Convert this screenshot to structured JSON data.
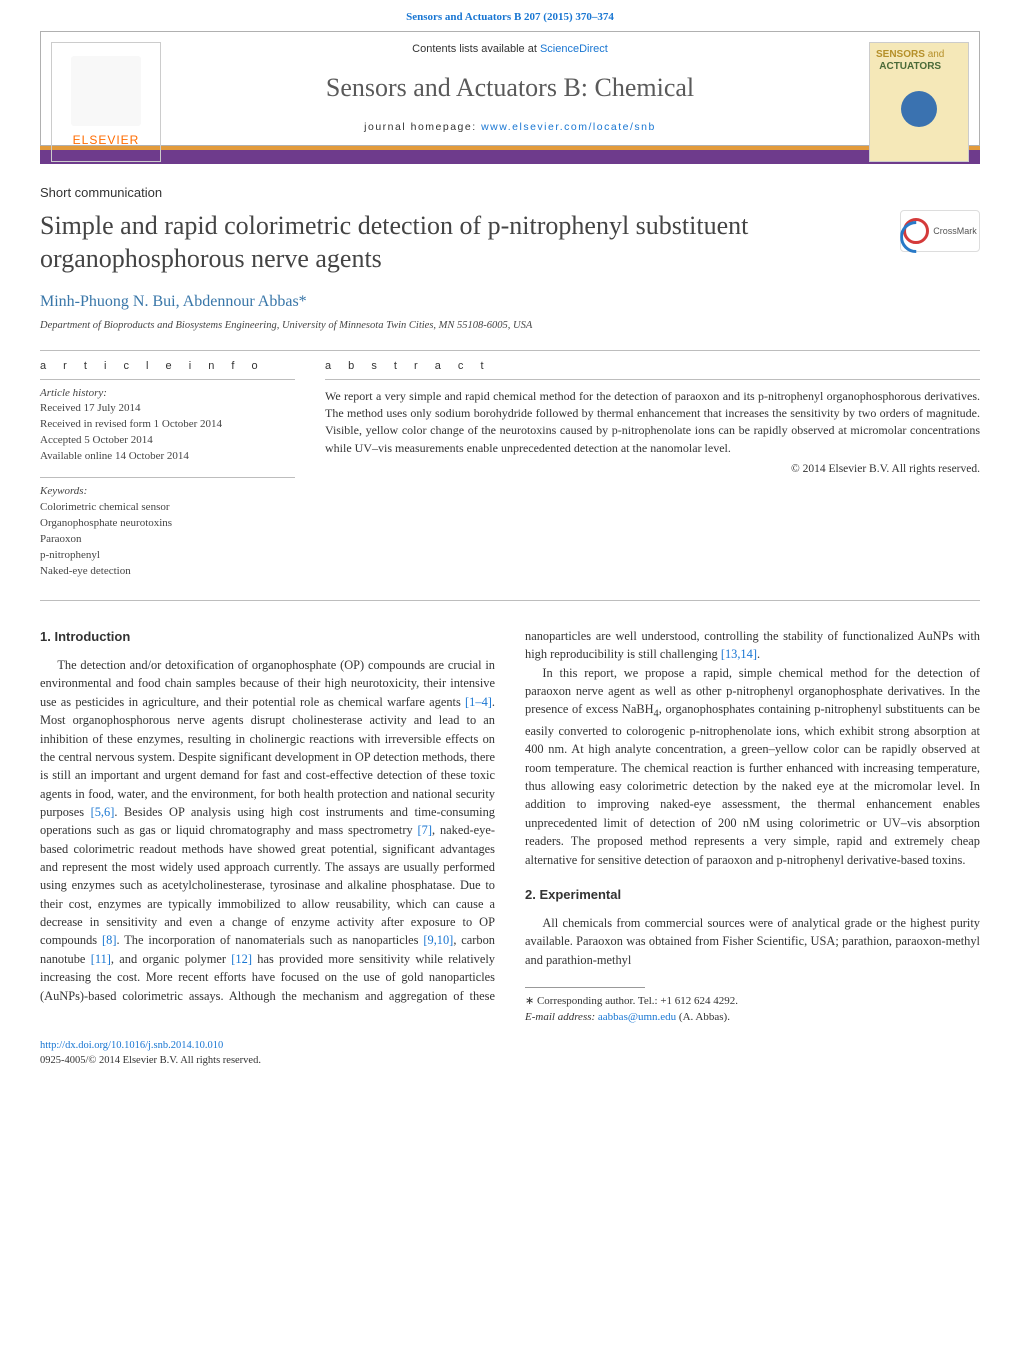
{
  "colors": {
    "link": "#1976d2",
    "elsevier_orange": "#ff6b00",
    "bar_purple": "#6e3b8c",
    "bar_gold": "#e39b3b",
    "author_blue": "#3876a8",
    "cover_bg": "#f5e8b8"
  },
  "header": {
    "citation": "Sensors and Actuators B 207 (2015) 370–374",
    "contents_line_prefix": "Contents lists available at ",
    "contents_link": "ScienceDirect",
    "journal_name": "Sensors and Actuators B: Chemical",
    "homepage_prefix": "journal homepage: ",
    "homepage_url": "www.elsevier.com/locate/snb",
    "elsevier_label": "ELSEVIER",
    "cover_line1": "SENSORS",
    "cover_and": "and",
    "cover_line2": "ACTUATORS"
  },
  "article": {
    "type": "Short communication",
    "title": "Simple and rapid colorimetric detection of p-nitrophenyl substituent organophosphorous nerve agents",
    "authors": "Minh-Phuong N. Bui, Abdennour Abbas",
    "corr_mark": "*",
    "affiliation": "Department of Bioproducts and Biosystems Engineering, University of Minnesota Twin Cities, MN 55108-6005, USA",
    "crossmark": "CrossMark"
  },
  "article_info": {
    "label": "a r t i c l e   i n f o",
    "history_label": "Article history:",
    "history_lines": [
      "Received 17 July 2014",
      "Received in revised form 1 October 2014",
      "Accepted 5 October 2014",
      "Available online 14 October 2014"
    ],
    "keywords_label": "Keywords:",
    "keywords": [
      "Colorimetric chemical sensor",
      "Organophosphate neurotoxins",
      "Paraoxon",
      "p-nitrophenyl",
      "Naked-eye detection"
    ]
  },
  "abstract": {
    "label": "a b s t r a c t",
    "text": "We report a very simple and rapid chemical method for the detection of paraoxon and its p-nitrophenyl organophosphorous derivatives. The method uses only sodium borohydride followed by thermal enhancement that increases the sensitivity by two orders of magnitude. Visible, yellow color change of the neurotoxins caused by p-nitrophenolate ions can be rapidly observed at micromolar concentrations while UV–vis measurements enable unprecedented detection at the nanomolar level.",
    "copyright": "© 2014 Elsevier B.V. All rights reserved."
  },
  "sections": {
    "s1_title": "1.  Introduction",
    "s1_p1a": "The detection and/or detoxification of organophosphate (OP) compounds are crucial in environmental and food chain samples because of their high neurotoxicity, their intensive use as pesticides in agriculture, and their potential role as chemical warfare agents ",
    "s1_ref1": "[1–4]",
    "s1_p1b": ". Most organophosphorous nerve agents disrupt cholinesterase activity and lead to an inhibition of these enzymes, resulting in cholinergic reactions with irreversible effects on the central nervous system. Despite significant development in OP detection methods, there is still an important and urgent demand for fast and cost-effective detection of these toxic agents in food, water, and the environment, for both health protection and national security purposes ",
    "s1_ref2": "[5,6]",
    "s1_p1c": ". Besides OP analysis using high cost instruments and time-consuming operations such as gas or liquid chromatography and mass spectrometry ",
    "s1_ref3": "[7]",
    "s1_p1d": ", naked-eye-based colorimetric readout methods have showed great potential, significant advantages and represent the most widely used approach currently. The assays are usually performed using enzymes such as acetylcholinesterase, tyrosinase and alkaline phosphatase. Due to their cost, enzymes are typically immobilized to allow reusability, which can cause a decrease in sensitivity and even a change of enzyme activity after exposure to OP compounds ",
    "s1_ref4": "[8]",
    "s1_p1e": ". The incorporation of nanomaterials such as nanoparticles ",
    "s1_ref5": "[9,10]",
    "s1_p1f": ", carbon nanotube ",
    "s1_ref6": "[11]",
    "s1_p1g": ", and organic polymer ",
    "s1_ref7": "[12]",
    "s1_p1h": " has provided more sensitivity while relatively increasing the cost. More recent efforts have focused on the use of gold nanoparticles (AuNPs)-based colorimetric assays. Although the mechanism and aggregation of these nanoparticles are well understood, controlling the stability of functionalized AuNPs with high reproducibility is still challenging ",
    "s1_ref8": "[13,14]",
    "s1_p1i": ".",
    "s1_p2a": "In this report, we propose a rapid, simple chemical method for the detection of paraoxon nerve agent as well as other p-nitrophenyl organophosphate derivatives. In the presence of excess NaBH",
    "s1_sub4": "4",
    "s1_p2b": ", organophosphates containing p-nitrophenyl substituents can be easily converted to colorogenic p-nitrophenolate ions, which exhibit strong absorption at 400 nm. At high analyte concentration, a green–yellow color can be rapidly observed at room temperature. The chemical reaction is further enhanced with increasing temperature, thus allowing easy colorimetric detection by the naked eye at the micromolar level. In addition to improving naked-eye assessment, the thermal enhancement enables unprecedented limit of detection of 200 nM using colorimetric or UV–vis absorption readers. The proposed method represents a very simple, rapid and extremely cheap alternative for sensitive detection of paraoxon and p-nitrophenyl derivative-based toxins.",
    "s2_title": "2.  Experimental",
    "s2_p1": "All chemicals from commercial sources were of analytical grade or the highest purity available. Paraoxon was obtained from Fisher Scientific, USA; parathion, paraoxon-methyl and parathion-methyl"
  },
  "footnote": {
    "corr_label": "∗ Corresponding author. Tel.: +1 612 624 4292.",
    "email_prefix": "E-mail address: ",
    "email": "aabbas@umn.edu",
    "email_suffix": " (A. Abbas)."
  },
  "footer": {
    "doi": "http://dx.doi.org/10.1016/j.snb.2014.10.010",
    "issn_line": "0925-4005/© 2014 Elsevier B.V. All rights reserved."
  }
}
